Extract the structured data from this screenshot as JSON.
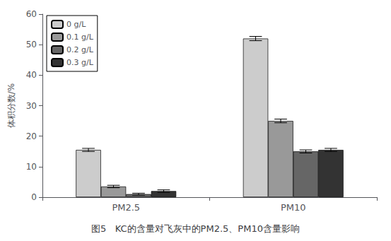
{
  "chart_data": {
    "type": "bar",
    "caption": "图5   KC的含量对飞灰中的PM2.5、PM10含量影响",
    "ylabel": "体积分数/%",
    "categories": [
      "PM2.5",
      "PM10"
    ],
    "series": [
      {
        "name": "0 g/L",
        "color": "#cccccc",
        "values": [
          15.5,
          52.0
        ],
        "errors": [
          0.5,
          0.7
        ]
      },
      {
        "name": "0.1 g/L",
        "color": "#999999",
        "values": [
          3.5,
          25.0
        ],
        "errors": [
          0.4,
          0.6
        ]
      },
      {
        "name": "0.2 g/L",
        "color": "#666666",
        "values": [
          1.0,
          15.0
        ],
        "errors": [
          0.3,
          0.5
        ]
      },
      {
        "name": "0.3 g/L",
        "color": "#333333",
        "values": [
          2.0,
          15.5
        ],
        "errors": [
          0.4,
          0.5
        ]
      }
    ],
    "ylim": [
      0,
      60
    ],
    "yticks": [
      0,
      10,
      20,
      30,
      40,
      50,
      60
    ],
    "grid": false,
    "legend": "upper left"
  }
}
